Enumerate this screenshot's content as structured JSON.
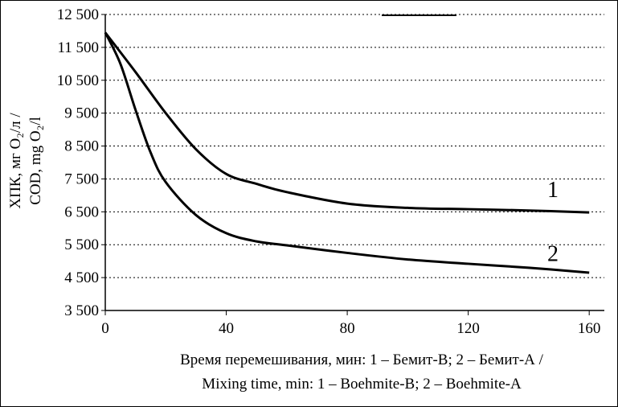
{
  "chart_data": {
    "type": "line",
    "ylabel_ru": "ХПК, мг O₂/л /",
    "ylabel_en": "COD, mg O₂/l",
    "xlabel_ru": "Время перемешивания, мин: 1 – Бемит-В; 2 – Бемит-А /",
    "xlabel_en": "Mixing time, min: 1 – Boehmite-B; 2 – Boehmite-A",
    "xlim": [
      0,
      165
    ],
    "ylim": [
      3500,
      12500
    ],
    "x_ticks": [
      0,
      40,
      80,
      120,
      160
    ],
    "x_tick_labels": [
      "0",
      "40",
      "80",
      "120",
      "160"
    ],
    "y_ticks": [
      3500,
      4500,
      5500,
      6500,
      7500,
      8500,
      9500,
      10500,
      11500,
      12500
    ],
    "y_tick_labels": [
      "3 500",
      "4 500",
      "5 500",
      "6 500",
      "7 500",
      "8 500",
      "9 500",
      "10 500",
      "11 500",
      "12 500"
    ],
    "grid": "horizontal dashed",
    "series": [
      {
        "name": "1",
        "x": [
          0,
          10,
          20,
          30,
          40,
          50,
          60,
          80,
          100,
          120,
          140,
          160
        ],
        "values": [
          11950,
          10750,
          9500,
          8400,
          7650,
          7350,
          7100,
          6750,
          6620,
          6580,
          6540,
          6480
        ]
      },
      {
        "name": "2",
        "x": [
          0,
          5,
          10,
          15,
          20,
          30,
          40,
          50,
          60,
          80,
          100,
          120,
          140,
          160
        ],
        "values": [
          11950,
          11000,
          9600,
          8300,
          7400,
          6400,
          5850,
          5600,
          5480,
          5250,
          5050,
          4920,
          4800,
          4650
        ]
      }
    ],
    "annotations": [
      {
        "text": "1",
        "x": 148,
        "y": 6950
      },
      {
        "text": "2",
        "x": 148,
        "y": 5000
      }
    ]
  }
}
